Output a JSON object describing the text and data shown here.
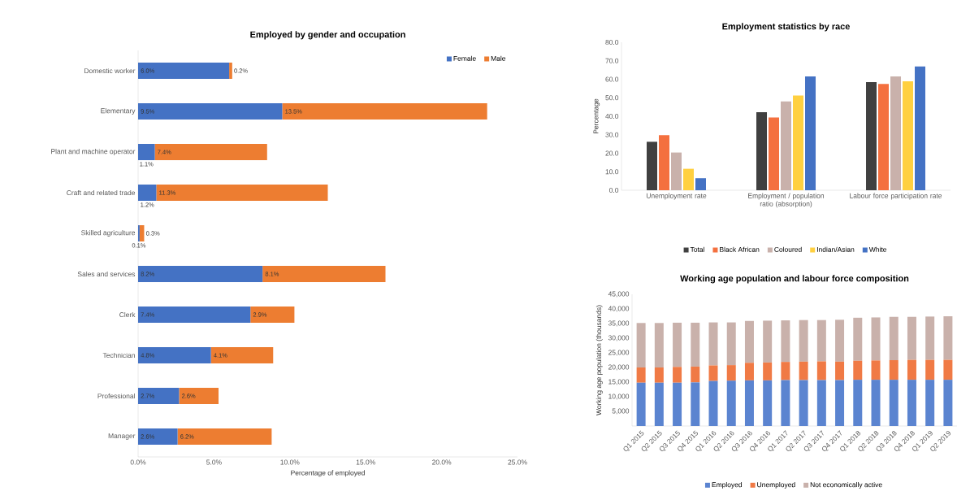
{
  "chart_data": [
    {
      "type": "bar",
      "orientation": "horizontal",
      "stacked": true,
      "title": "Employed by gender and occupation",
      "xlabel": "Percentage of employed",
      "categories": [
        "Domestic worker",
        "Elementary",
        "Plant and machine operator",
        "Craft and related trade",
        "Skilled agriculture",
        "Sales and services",
        "Clerk",
        "Technician",
        "Professional",
        "Manager"
      ],
      "series": [
        {
          "name": "Female",
          "color": "#4472c4",
          "values": [
            6.0,
            9.5,
            1.1,
            1.2,
            0.1,
            8.2,
            7.4,
            4.8,
            2.7,
            2.6
          ],
          "value_labels": [
            "6.0%",
            "9.5%",
            "1.1%",
            "1.2%",
            "0.1%",
            "8.2%",
            "7.4%",
            "4.8%",
            "2.7%",
            "2.6%"
          ]
        },
        {
          "name": "Male",
          "color": "#ed7d31",
          "values": [
            0.2,
            13.5,
            7.4,
            11.3,
            0.3,
            8.1,
            2.9,
            4.1,
            2.6,
            6.2
          ],
          "value_labels": [
            "0.2%",
            "13.5%",
            "7.4%",
            "11.3%",
            "0.3%",
            "8.1%",
            "2.9%",
            "4.1%",
            "2.6%",
            "6.2%"
          ]
        }
      ],
      "xlim": [
        0,
        25
      ],
      "xticks": [
        {
          "value": 0,
          "label": "0.0%"
        },
        {
          "value": 5,
          "label": "5.0%"
        },
        {
          "value": 10,
          "label": "10.0%"
        },
        {
          "value": 15,
          "label": "15.0%"
        },
        {
          "value": 20,
          "label": "20.0%"
        },
        {
          "value": 25,
          "label": "25.0%"
        }
      ],
      "legend": "top right"
    },
    {
      "type": "bar",
      "title": "Employment statistics by race",
      "ylabel": "Percentage",
      "categories": [
        "Unemployment rate",
        "Employment / population ratio (absorption)",
        "Labour force participation rate"
      ],
      "series": [
        {
          "name": "Total",
          "color": "#404040",
          "values": [
            26.2,
            42.2,
            58.5
          ]
        },
        {
          "name": "Black African",
          "color": "#f4703f",
          "values": [
            29.8,
            39.3,
            57.5
          ]
        },
        {
          "name": "Coloured",
          "color": "#c9b1ab",
          "values": [
            20.4,
            48.0,
            61.5
          ]
        },
        {
          "name": "Indian/Asian",
          "color": "#ffd040",
          "values": [
            11.6,
            51.2,
            58.9
          ]
        },
        {
          "name": "White",
          "color": "#4472c4",
          "values": [
            6.5,
            61.5,
            66.9
          ]
        }
      ],
      "ylim": [
        0,
        80
      ],
      "yticks": [
        {
          "value": 0,
          "label": "0.0"
        },
        {
          "value": 10,
          "label": "10.0"
        },
        {
          "value": 20,
          "label": "20.0"
        },
        {
          "value": 30,
          "label": "30.0"
        },
        {
          "value": 40,
          "label": "40.0"
        },
        {
          "value": 50,
          "label": "50.0"
        },
        {
          "value": 60,
          "label": "60.0"
        },
        {
          "value": 70,
          "label": "70.0"
        },
        {
          "value": 80,
          "label": "80.0"
        }
      ],
      "legend": "bottom"
    },
    {
      "type": "bar",
      "stacked": true,
      "title": "Working age population and labour force composition",
      "ylabel": "Working age population (thousands)",
      "categories": [
        "Q1 2015",
        "Q2 2015",
        "Q3 2015",
        "Q4 2015",
        "Q1 2016",
        "Q2 2016",
        "Q3 2016",
        "Q4 2016",
        "Q1 2017",
        "Q2 2017",
        "Q3 2017",
        "Q4 2017",
        "Q1 2018",
        "Q2 2018",
        "Q3 2018",
        "Q4 2018",
        "Q1 2019",
        "Q2 2019"
      ],
      "series": [
        {
          "name": "Employed",
          "color": "#5b84d0",
          "values": [
            14800,
            14800,
            14800,
            14900,
            15400,
            15500,
            15600,
            15600,
            15700,
            15700,
            15700,
            15700,
            15800,
            15800,
            15800,
            15800,
            15800,
            15800
          ]
        },
        {
          "name": "Unemployed",
          "color": "#f07a45",
          "values": [
            5200,
            5200,
            5400,
            5400,
            5300,
            5300,
            6000,
            6100,
            6200,
            6300,
            6400,
            6300,
            6500,
            6600,
            6700,
            6800,
            6800,
            6800
          ]
        },
        {
          "name": "Not economically active",
          "color": "#c9b1ab",
          "values": [
            15200,
            15200,
            15100,
            15000,
            14700,
            14600,
            14300,
            14300,
            14200,
            14200,
            14100,
            14300,
            14700,
            14700,
            14800,
            14700,
            14800,
            14900
          ]
        }
      ],
      "ylim": [
        0,
        45000
      ],
      "yticks": [
        {
          "value": 5000,
          "label": "5,000"
        },
        {
          "value": 10000,
          "label": "10,000"
        },
        {
          "value": 15000,
          "label": "15,000"
        },
        {
          "value": 20000,
          "label": "20,000"
        },
        {
          "value": 25000,
          "label": "25,000"
        },
        {
          "value": 30000,
          "label": "30,000"
        },
        {
          "value": 35000,
          "label": "35,000"
        },
        {
          "value": 40000,
          "label": "40,000"
        },
        {
          "value": 45000,
          "label": "45,000"
        }
      ],
      "legend": "bottom"
    }
  ]
}
